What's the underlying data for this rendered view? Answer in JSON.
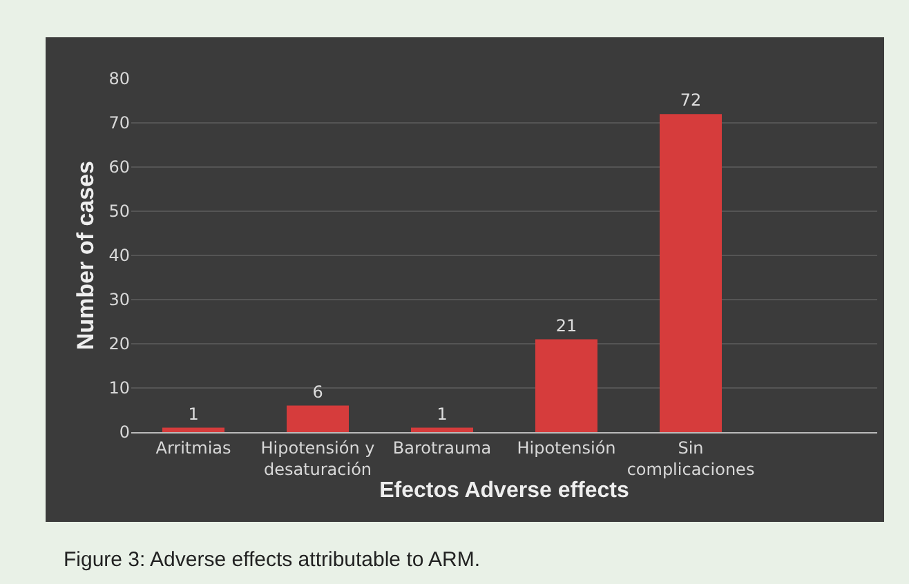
{
  "chart_data": {
    "type": "bar",
    "xlabel": "Efectos Adverse effects",
    "ylabel": "Number of cases",
    "categories": [
      "Arritmias",
      "Hipotensión y desaturación",
      "Barotrauma",
      "Hipotensión",
      "Sin complicaciones",
      null
    ],
    "values": [
      1,
      6,
      1,
      21,
      72,
      null
    ],
    "color": "#d63c3c",
    "ylim": [
      0,
      80
    ],
    "yticks": [
      0,
      10,
      20,
      30,
      40,
      50,
      60,
      70,
      80
    ],
    "grid": "y",
    "data_labels": true,
    "legend": false,
    "annotations": [
      "Figure 3: Adverse effects attributable to ARM."
    ]
  }
}
